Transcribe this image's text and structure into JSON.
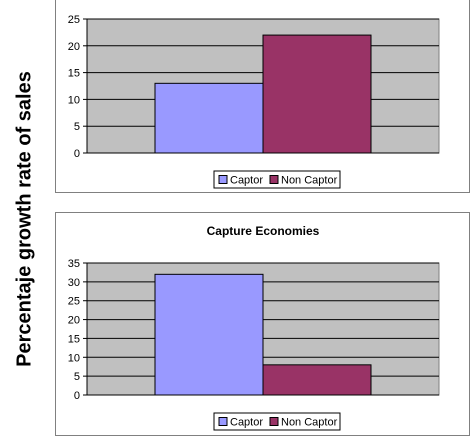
{
  "y_axis_label": "Percentaje growth rate of sales",
  "chart_data": [
    {
      "type": "bar",
      "title": "",
      "categories": [
        ""
      ],
      "series": [
        {
          "name": "Captor",
          "values": [
            13
          ]
        },
        {
          "name": "Non Captor",
          "values": [
            22
          ]
        }
      ],
      "ylim": [
        0,
        25
      ],
      "yticks": [
        0,
        5,
        10,
        15,
        20,
        25
      ],
      "grid": true,
      "legend": "bottom-center",
      "colors": {
        "Captor": "#9999ff",
        "Non Captor": "#993366",
        "plot_area": "#c0c0c0"
      }
    },
    {
      "type": "bar",
      "title": "Capture Economies",
      "categories": [
        ""
      ],
      "series": [
        {
          "name": "Captor",
          "values": [
            32
          ]
        },
        {
          "name": "Non Captor",
          "values": [
            8
          ]
        }
      ],
      "ylim": [
        0,
        35
      ],
      "yticks": [
        0,
        5,
        10,
        15,
        20,
        25,
        30,
        35
      ],
      "grid": true,
      "legend": "bottom-center",
      "colors": {
        "Captor": "#9999ff",
        "Non Captor": "#993366",
        "plot_area": "#c0c0c0"
      }
    }
  ]
}
